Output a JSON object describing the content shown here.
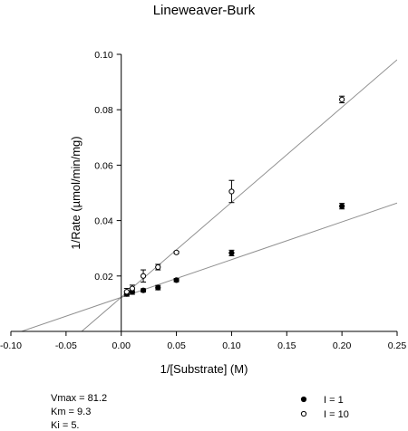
{
  "chart_data": {
    "type": "scatter",
    "title": "Lineweaver-Burk",
    "xlabel": "1/[Substrate] (M)",
    "ylabel": "1/Rate (µmol/min/mg)",
    "xlim": [
      -0.1,
      0.25
    ],
    "ylim": [
      0.0,
      0.1
    ],
    "x_ticks": [
      -0.1,
      -0.05,
      0.0,
      0.05,
      0.1,
      0.15,
      0.2,
      0.25
    ],
    "x_tick_labels": [
      "-0.10",
      "-0.05",
      "0.00",
      "0.05",
      "0.10",
      "0.15",
      "0.20",
      "0.25"
    ],
    "y_ticks": [
      0.02,
      0.04,
      0.06,
      0.08,
      0.1
    ],
    "y_tick_labels": [
      "0.02",
      "0.04",
      "0.06",
      "0.08",
      "0.10"
    ],
    "grid": false,
    "legend_position": "bottom-right",
    "series": [
      {
        "name": "I = 1",
        "marker": "filled-circle",
        "color": "#000000",
        "points": [
          {
            "x": 0.005,
            "y": 0.0135,
            "err": 0.0008
          },
          {
            "x": 0.01,
            "y": 0.0142,
            "err": 0.0008
          },
          {
            "x": 0.02,
            "y": 0.0148,
            "err": 0.0006
          },
          {
            "x": 0.0333,
            "y": 0.0158,
            "err": 0.0008
          },
          {
            "x": 0.05,
            "y": 0.0185,
            "err": 0.0006
          },
          {
            "x": 0.1,
            "y": 0.0283,
            "err": 0.001
          },
          {
            "x": 0.2,
            "y": 0.0452,
            "err": 0.001
          }
        ],
        "fit_line": {
          "slope": 0.1361,
          "intercept": 0.0123,
          "color": "#909090"
        }
      },
      {
        "name": "I = 10",
        "marker": "open-circle",
        "color": "#000000",
        "points": [
          {
            "x": 0.005,
            "y": 0.0143,
            "err": 0.0012
          },
          {
            "x": 0.01,
            "y": 0.0155,
            "err": 0.0012
          },
          {
            "x": 0.02,
            "y": 0.02,
            "err": 0.0022
          },
          {
            "x": 0.0333,
            "y": 0.0232,
            "err": 0.001
          },
          {
            "x": 0.05,
            "y": 0.0285,
            "err": 0.0004
          },
          {
            "x": 0.1,
            "y": 0.0505,
            "err": 0.004
          },
          {
            "x": 0.2,
            "y": 0.0837,
            "err": 0.0012
          }
        ],
        "fit_line": {
          "slope": 0.343,
          "intercept": 0.0123,
          "color": "#909090"
        }
      }
    ],
    "annotations": [
      {
        "key": "vmax",
        "text": "Vmax = 81.2"
      },
      {
        "key": "km",
        "text": "Km = 9.3"
      },
      {
        "key": "ki",
        "text": "Ki = 5."
      }
    ]
  }
}
